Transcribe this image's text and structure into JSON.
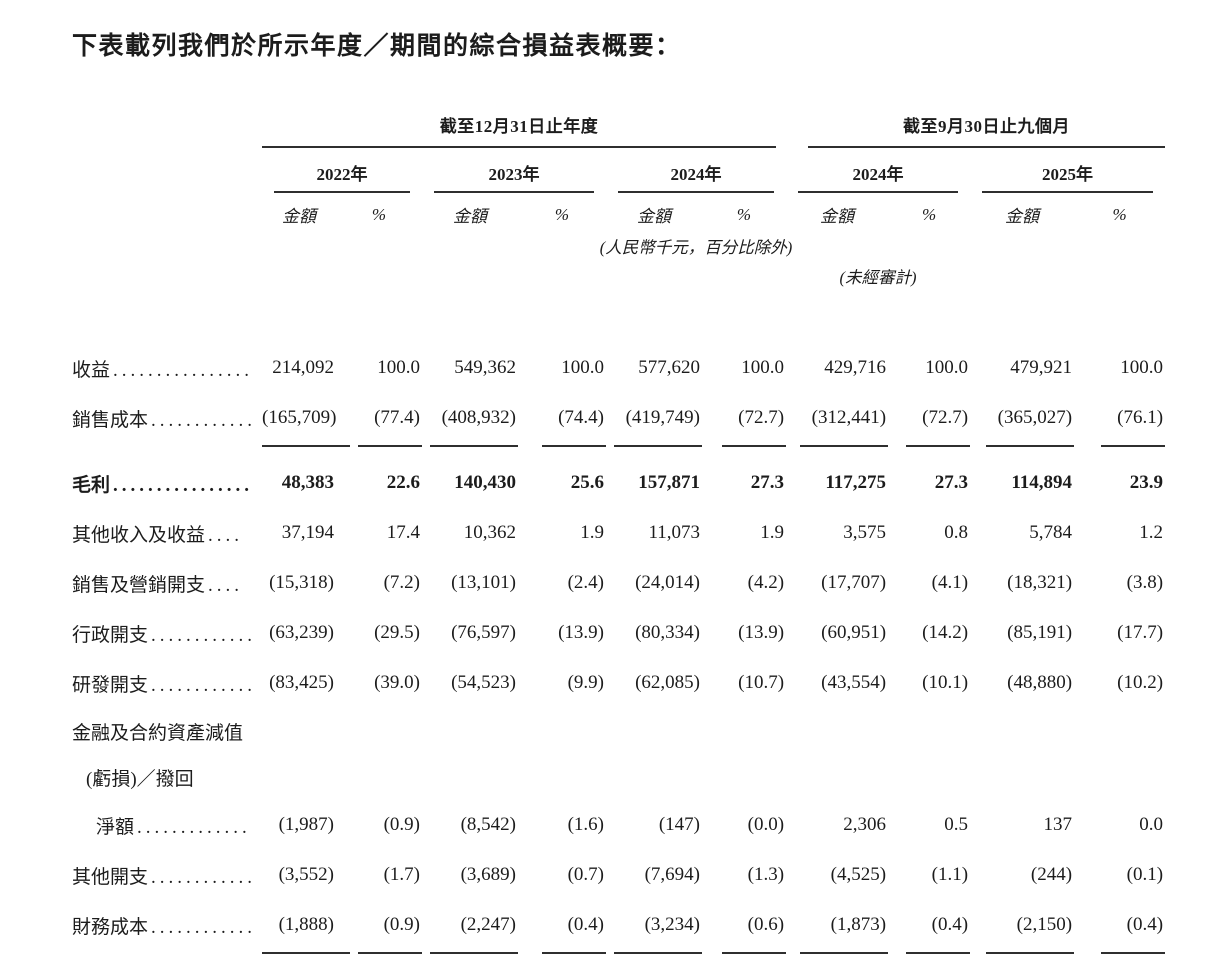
{
  "title": "下表載列我們於所示年度／期間的綜合損益表概要：",
  "table": {
    "group_headers": [
      {
        "label": "截至12月31日止年度"
      },
      {
        "label": "截至9月30日止九個月"
      }
    ],
    "year_headers": [
      "2022年",
      "2023年",
      "2024年",
      "2024年",
      "2025年"
    ],
    "col_headers": {
      "amount": "金額",
      "percent": "%"
    },
    "notes": {
      "currency_note": "(人民幣千元，百分比除外)",
      "unaudited_note": "(未經審計)"
    },
    "rows": [
      {
        "label": "收益",
        "leader": "................",
        "values": [
          "214,092",
          "100.0",
          "549,362",
          "100.0",
          "577,620",
          "100.0",
          "429,716",
          "100.0",
          "479,921",
          "100.0"
        ]
      },
      {
        "label": "銷售成本",
        "leader": "............",
        "underline": true,
        "values": [
          "(165,709)",
          "(77.4)",
          "(408,932)",
          "(74.4)",
          "(419,749)",
          "(72.7)",
          "(312,441)",
          "(72.7)",
          "(365,027)",
          "(76.1)"
        ]
      },
      {
        "label": "毛利",
        "leader": "................",
        "bold": true,
        "values": [
          "48,383",
          "22.6",
          "140,430",
          "25.6",
          "157,871",
          "27.3",
          "117,275",
          "27.3",
          "114,894",
          "23.9"
        ]
      },
      {
        "label": "其他收入及收益",
        "leader": "....",
        "values": [
          "37,194",
          "17.4",
          "10,362",
          "1.9",
          "11,073",
          "1.9",
          "3,575",
          "0.8",
          "5,784",
          "1.2"
        ]
      },
      {
        "label": "銷售及營銷開支",
        "leader": "....",
        "values": [
          "(15,318)",
          "(7.2)",
          "(13,101)",
          "(2.4)",
          "(24,014)",
          "(4.2)",
          "(17,707)",
          "(4.1)",
          "(18,321)",
          "(3.8)"
        ]
      },
      {
        "label": "行政開支",
        "leader": "............",
        "values": [
          "(63,239)",
          "(29.5)",
          "(76,597)",
          "(13.9)",
          "(80,334)",
          "(13.9)",
          "(60,951)",
          "(14.2)",
          "(85,191)",
          "(17.7)"
        ]
      },
      {
        "label": "研發開支",
        "leader": "............",
        "values": [
          "(83,425)",
          "(39.0)",
          "(54,523)",
          "(9.9)",
          "(62,085)",
          "(10.7)",
          "(43,554)",
          "(10.1)",
          "(48,880)",
          "(10.2)"
        ]
      },
      {
        "label": "金融及合約資產減值",
        "label_only": true
      },
      {
        "label": "(虧損)／撥回",
        "label_only": true,
        "indent": 1
      },
      {
        "label": "淨額",
        "leader": ".............",
        "indent": 2,
        "values": [
          "(1,987)",
          "(0.9)",
          "(8,542)",
          "(1.6)",
          "(147)",
          "(0.0)",
          "2,306",
          "0.5",
          "137",
          "0.0"
        ]
      },
      {
        "label": "其他開支",
        "leader": "............",
        "values": [
          "(3,552)",
          "(1.7)",
          "(3,689)",
          "(0.7)",
          "(7,694)",
          "(1.3)",
          "(4,525)",
          "(1.1)",
          "(244)",
          "(0.1)"
        ]
      },
      {
        "label": "財務成本",
        "leader": "............",
        "underline": true,
        "values": [
          "(1,888)",
          "(0.9)",
          "(2,247)",
          "(0.4)",
          "(3,234)",
          "(0.6)",
          "(1,873)",
          "(0.4)",
          "(2,150)",
          "(0.4)"
        ]
      }
    ]
  }
}
